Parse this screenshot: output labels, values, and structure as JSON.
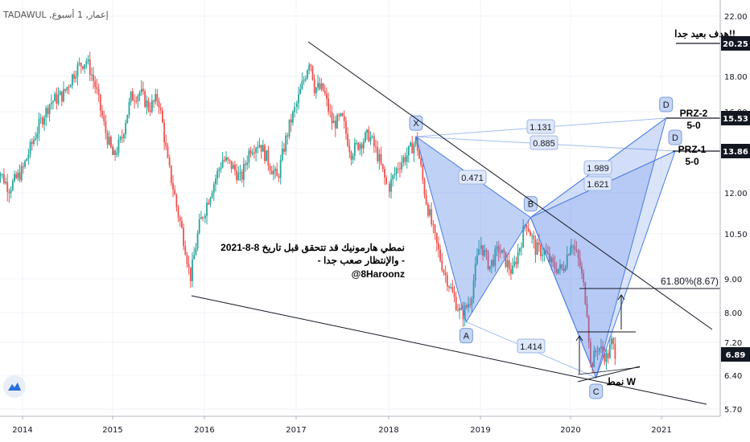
{
  "header": {
    "symbol_line": "TADAWUL ,إعمار, 1 أسبوع"
  },
  "colors": {
    "up": "#26a69a",
    "down": "#ef5350",
    "pattern_fill": "#4a7ce6",
    "price_tag": "#131722"
  },
  "chart_data": {
    "type": "candlestick",
    "title": "",
    "x_ticks": [
      "2014",
      "2015",
      "2016",
      "2017",
      "2018",
      "2019",
      "2020",
      "2021"
    ],
    "y_ticks": [
      "22.00",
      "18.00",
      "16.00",
      "14.00",
      "12.00",
      "10.50",
      "9.00",
      "8.00",
      "7.20",
      "6.40",
      "5.70"
    ],
    "ylim": [
      5.7,
      22.0
    ],
    "current_price": "6.89",
    "price_tags": [
      {
        "id": "target",
        "value": "20.25",
        "label": "هدف بعيد جدا!!"
      },
      {
        "id": "prz2",
        "value": "15.53",
        "label": "PRZ-2",
        "sub": "5-0"
      },
      {
        "id": "prz1",
        "value": "13.86",
        "label": "PRZ-1",
        "sub": "5-0"
      }
    ],
    "fib_label": "61.80%(8.67)",
    "pattern_points": [
      {
        "label": "X",
        "year": 2018.3,
        "price": 14.6
      },
      {
        "label": "A",
        "year": 2018.85,
        "price": 7.75
      },
      {
        "label": "B",
        "year": 2019.55,
        "price": 11.1
      },
      {
        "label": "C",
        "year": 2020.28,
        "price": 6.35
      },
      {
        "label": "D",
        "year": 2021.05,
        "price": 15.53
      },
      {
        "label": "D",
        "year": 2021.15,
        "price": 13.86
      }
    ],
    "ratios": [
      "0.471",
      "1.131",
      "0.885",
      "1.989",
      "1.621",
      "1.414"
    ],
    "pattern_w_label": "نمط W",
    "annotation": {
      "line1": "نمطي هارمونيك قد تتحقق قبل تاريخ 8-8-2021",
      "line2": "- والإنتظار صعب جدا -",
      "line3": "@8Haroonz"
    },
    "price_series": [
      [
        2013.7,
        13.3
      ],
      [
        2013.85,
        12.2
      ],
      [
        2014.0,
        13.0
      ],
      [
        2014.15,
        14.8
      ],
      [
        2014.3,
        16.5
      ],
      [
        2014.45,
        17.0
      ],
      [
        2014.6,
        18.6
      ],
      [
        2014.7,
        19.1
      ],
      [
        2014.8,
        17.4
      ],
      [
        2014.9,
        15.0
      ],
      [
        2015.0,
        13.5
      ],
      [
        2015.1,
        14.5
      ],
      [
        2015.2,
        16.8
      ],
      [
        2015.3,
        17.1
      ],
      [
        2015.4,
        16.2
      ],
      [
        2015.5,
        16.8
      ],
      [
        2015.6,
        13.4
      ],
      [
        2015.7,
        11.5
      ],
      [
        2015.8,
        10.0
      ],
      [
        2015.85,
        9.0
      ],
      [
        2015.95,
        10.8
      ],
      [
        2016.1,
        12.4
      ],
      [
        2016.2,
        13.5
      ],
      [
        2016.3,
        13.2
      ],
      [
        2016.4,
        12.6
      ],
      [
        2016.5,
        14.0
      ],
      [
        2016.6,
        14.3
      ],
      [
        2016.7,
        13.4
      ],
      [
        2016.8,
        12.6
      ],
      [
        2016.9,
        14.6
      ],
      [
        2017.0,
        16.3
      ],
      [
        2017.1,
        18.1
      ],
      [
        2017.15,
        19.3
      ],
      [
        2017.2,
        17.4
      ],
      [
        2017.3,
        17.2
      ],
      [
        2017.4,
        15.2
      ],
      [
        2017.5,
        15.6
      ],
      [
        2017.6,
        13.8
      ],
      [
        2017.7,
        14.3
      ],
      [
        2017.8,
        14.7
      ],
      [
        2017.9,
        13.6
      ],
      [
        2018.0,
        12.2
      ],
      [
        2018.1,
        13.2
      ],
      [
        2018.2,
        13.7
      ],
      [
        2018.3,
        14.4
      ],
      [
        2018.4,
        11.9
      ],
      [
        2018.5,
        10.4
      ],
      [
        2018.6,
        9.3
      ],
      [
        2018.7,
        8.5
      ],
      [
        2018.8,
        7.9
      ],
      [
        2018.9,
        8.4
      ],
      [
        2019.0,
        10.2
      ],
      [
        2019.1,
        9.4
      ],
      [
        2019.2,
        10.0
      ],
      [
        2019.35,
        9.2
      ],
      [
        2019.45,
        10.3
      ],
      [
        2019.5,
        11.0
      ],
      [
        2019.6,
        10.0
      ],
      [
        2019.7,
        9.9
      ],
      [
        2019.8,
        9.4
      ],
      [
        2019.9,
        9.3
      ],
      [
        2020.0,
        10.3
      ],
      [
        2020.1,
        9.5
      ],
      [
        2020.18,
        8.1
      ],
      [
        2020.22,
        6.6
      ],
      [
        2020.3,
        7.1
      ],
      [
        2020.4,
        6.8
      ],
      [
        2020.45,
        7.2
      ],
      [
        2020.5,
        6.89
      ]
    ]
  }
}
